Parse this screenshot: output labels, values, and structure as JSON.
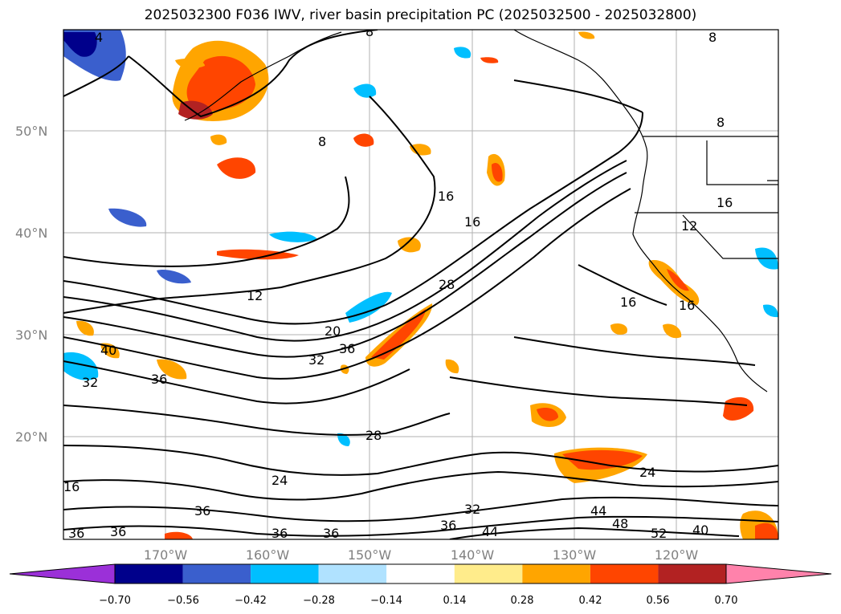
{
  "title": "2025032300 F036 IWV, river basin precipitation PC (2025032500 - 2025032800)",
  "map": {
    "lat_ticks": [
      "50°N",
      "40°N",
      "30°N",
      "20°N"
    ],
    "lon_ticks": [
      "170°W",
      "160°W",
      "150°W",
      "140°W",
      "130°W",
      "120°W"
    ],
    "contour_labels": [
      "4",
      "8",
      "8",
      "8",
      "16",
      "16",
      "12",
      "12",
      "16",
      "16",
      "20",
      "28",
      "32",
      "36",
      "40",
      "32",
      "36",
      "36",
      "28",
      "24",
      "24",
      "36",
      "36",
      "36",
      "36",
      "32",
      "36",
      "44",
      "44",
      "48",
      "52",
      "40",
      "8",
      "16"
    ]
  },
  "colorbar": {
    "ticks": [
      "−0.70",
      "−0.56",
      "−0.42",
      "−0.28",
      "−0.14",
      "0.14",
      "0.28",
      "0.42",
      "0.56",
      "0.70"
    ],
    "colors": [
      "#9b30d8",
      "#00008b",
      "#3a5fcd",
      "#00bfff",
      "#b0e2ff",
      "#ffffff",
      "#ffec8b",
      "#ffa500",
      "#ff4500",
      "#b22222",
      "#ff82ab"
    ]
  },
  "chart_data": {
    "type": "filled-contour-map",
    "field": "IWV contours with precipitation PC shading",
    "lat_ticks_deg": [
      50,
      40,
      30,
      20
    ],
    "lon_ticks_deg": [
      -170,
      -160,
      -150,
      -140,
      -130,
      -120
    ],
    "iwv_contour_levels": [
      4,
      8,
      12,
      16,
      20,
      24,
      28,
      32,
      36,
      40,
      44,
      48,
      52
    ],
    "pc_bins": [
      -0.7,
      -0.56,
      -0.42,
      -0.28,
      -0.14,
      0.14,
      0.28,
      0.42,
      0.56,
      0.7
    ]
  }
}
